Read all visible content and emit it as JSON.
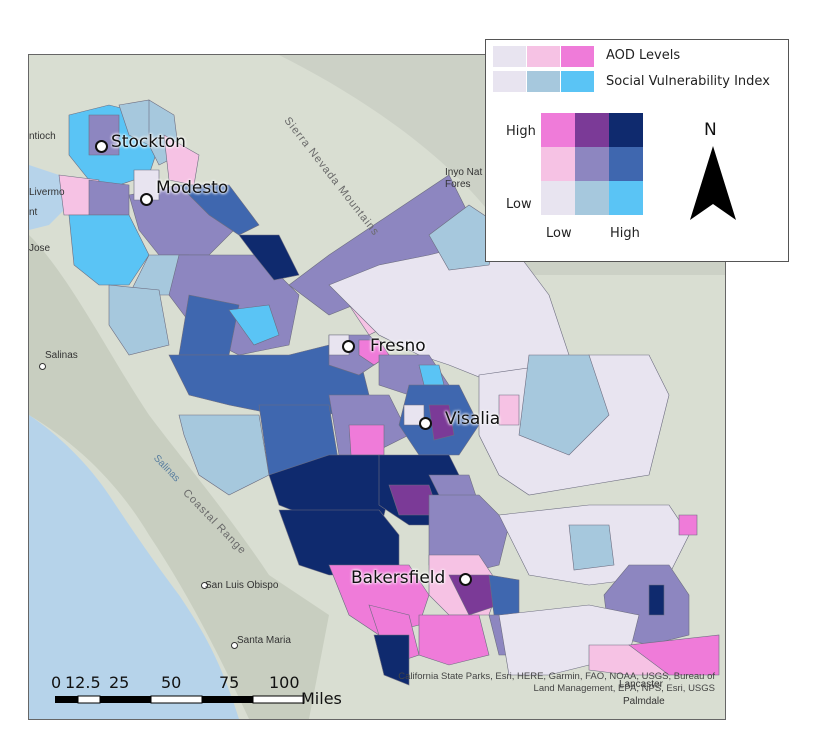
{
  "legend": {
    "aod_label": "AOD Levels",
    "svi_label": "Social Vulnerability Index",
    "aod_colors": [
      "#e8e4f0",
      "#f6c2e4",
      "#ef7bd9"
    ],
    "svi_colors": [
      "#e8e4f0",
      "#a6c8dd",
      "#5ac4f5"
    ],
    "grid_rows": [
      [
        "#ef7bd9",
        "#7b3a97",
        "#0f2a6e"
      ],
      [
        "#f6c2e4",
        "#8d86c0",
        "#3f67af"
      ],
      [
        "#e8e4f0",
        "#a6c8dd",
        "#5ac4f5"
      ]
    ],
    "axis_high_y": "High",
    "axis_low_y": "Low",
    "axis_low_x": "Low",
    "axis_high_x": "High"
  },
  "north_arrow": {
    "label": "N"
  },
  "cities": [
    {
      "name": "Stockton"
    },
    {
      "name": "Modesto"
    },
    {
      "name": "Fresno"
    },
    {
      "name": "Visalia"
    },
    {
      "name": "Bakersfield"
    }
  ],
  "basemap_places": [
    "Salinas",
    "San Luis Obispo",
    "Santa Maria",
    "Palmdale",
    "Lancaster",
    "Inyo Nat",
    "Fores",
    "Livermo",
    "Jose",
    "ntioch",
    "nt"
  ],
  "terrain": {
    "sierra": "Sierra Nevada Mountains",
    "coastal": "Coastal Range",
    "river": "Salinas"
  },
  "scale": {
    "ticks": [
      "0",
      "12.5",
      "25",
      "50",
      "75",
      "100"
    ],
    "unit": "Miles"
  },
  "attribution": "California State Parks, Esri, HERE, Garmin, FAO, NOAA, USGS, Bureau of Land Management, EPA, NPS, Esri, USGS",
  "colors": {
    "water": "#b6d3ea",
    "land": "#d9ded2",
    "county_border": "#7a7a8a"
  }
}
